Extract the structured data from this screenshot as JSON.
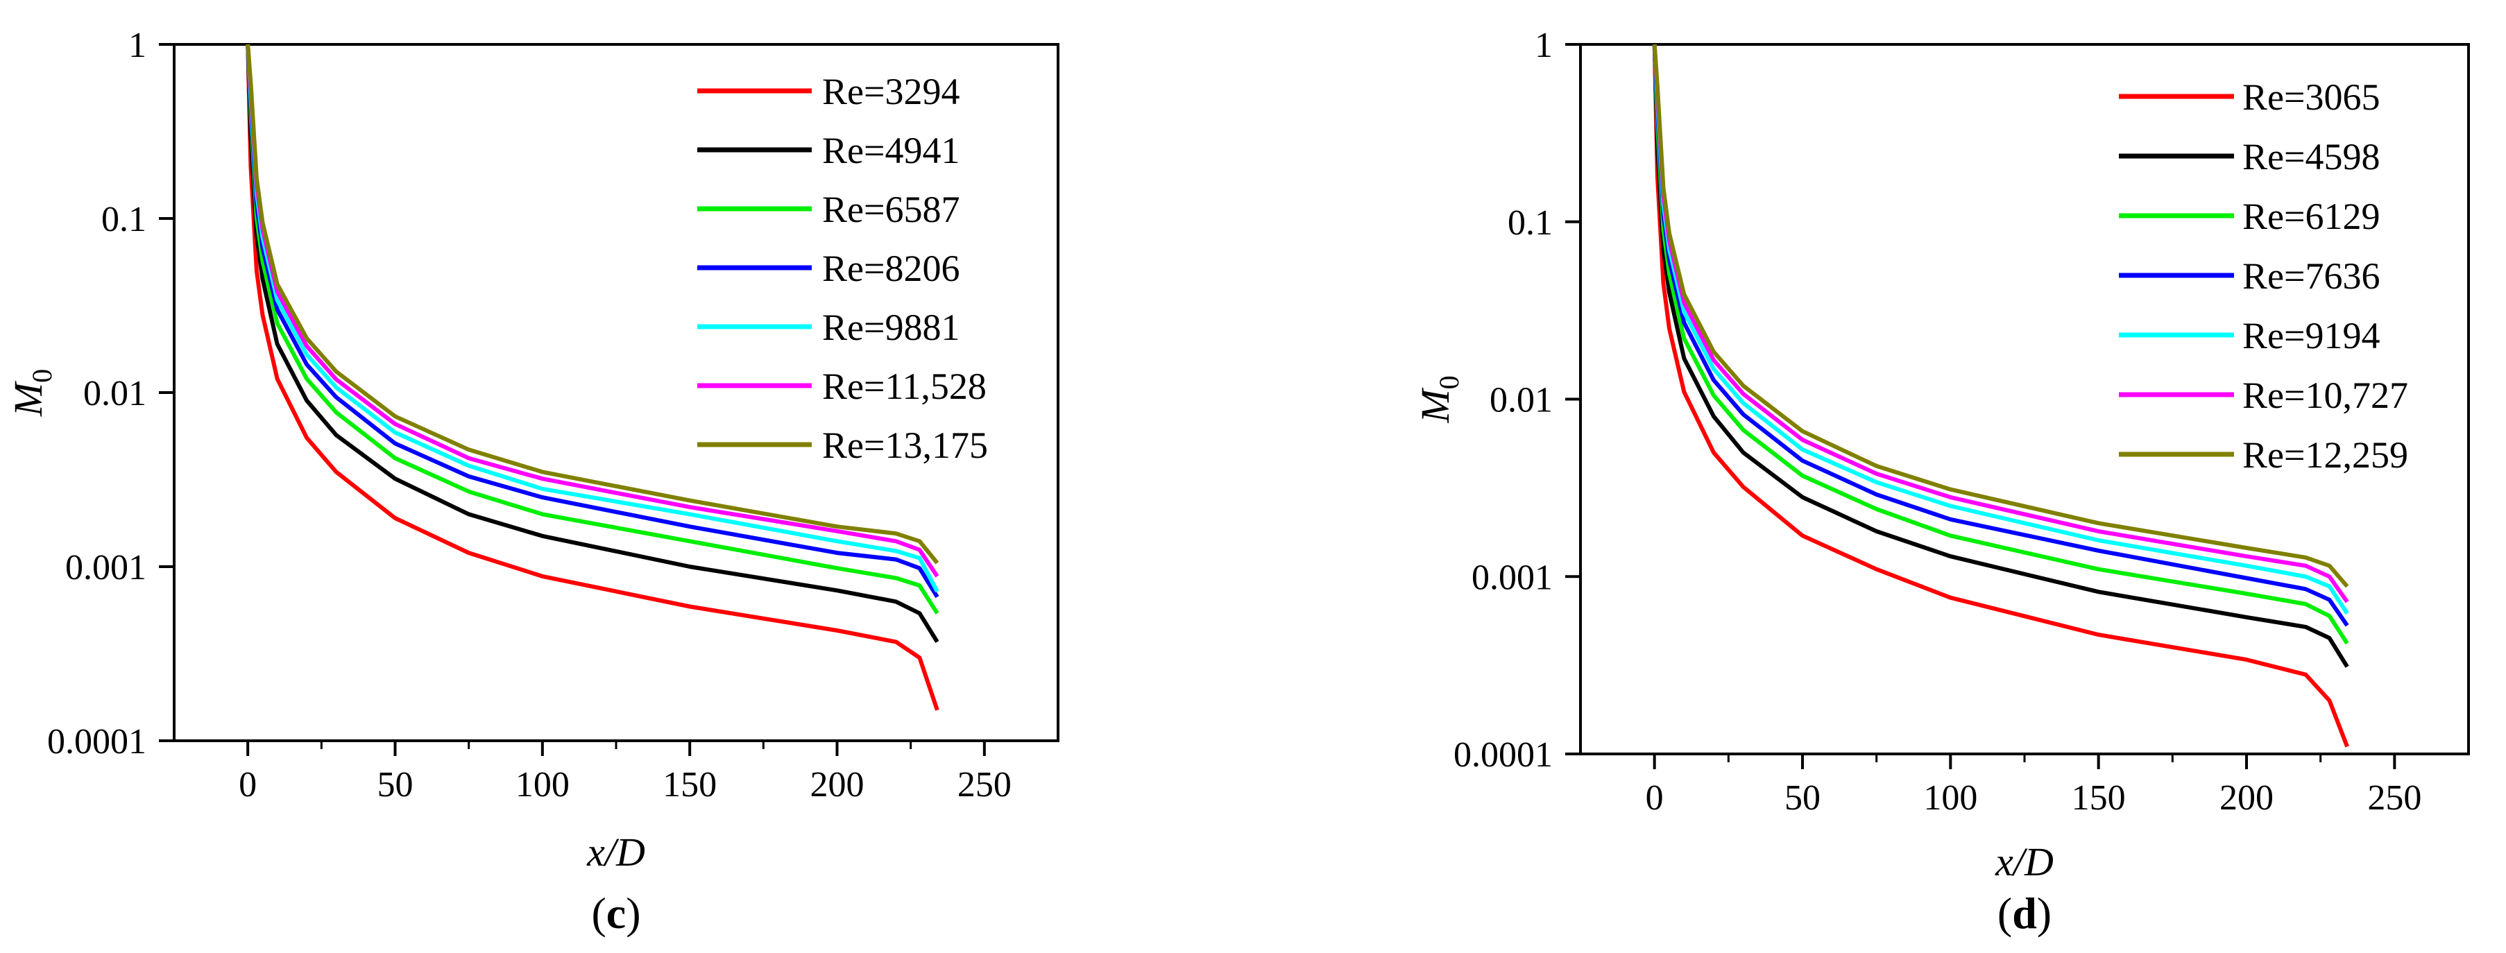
{
  "figure_title": "",
  "chart_data": [
    {
      "panel": "c",
      "panel_label": {
        "open": "(",
        "letter": "c",
        "close": ")"
      },
      "type": "line",
      "title": "",
      "xlabel": "x/D",
      "ylabel": {
        "main": "M",
        "sub": "0"
      },
      "xscale": "linear",
      "yscale": "log",
      "xlim": [
        -25,
        275
      ],
      "ylim": [
        0.0001,
        1
      ],
      "xticks": [
        0,
        50,
        100,
        150,
        200,
        250
      ],
      "xtick_labels": [
        "0",
        "50",
        "100",
        "150",
        "200",
        "250"
      ],
      "yticks": [
        1,
        0.1,
        0.01,
        0.001,
        0.0001
      ],
      "ytick_labels": [
        "1",
        "0.1",
        "0.01",
        "0.001",
        "0.0001"
      ],
      "legend_position": "top-right",
      "x": [
        0,
        1,
        3,
        5,
        10,
        20,
        30,
        50,
        75,
        100,
        150,
        200,
        220,
        228,
        234
      ],
      "series": [
        {
          "name": "Re=3294",
          "color": "#ff0000",
          "values": [
            1,
            0.2,
            0.05,
            0.028,
            0.012,
            0.0055,
            0.0035,
            0.0019,
            0.0012,
            0.00088,
            0.00059,
            0.00043,
            0.00037,
            0.0003,
            0.00015
          ]
        },
        {
          "name": "Re=4941",
          "color": "#000000",
          "values": [
            1,
            0.3,
            0.08,
            0.045,
            0.019,
            0.009,
            0.0057,
            0.0032,
            0.002,
            0.0015,
            0.001,
            0.00073,
            0.00063,
            0.00054,
            0.00037
          ]
        },
        {
          "name": "Re=6587",
          "color": "#00ee00",
          "values": [
            1,
            0.4,
            0.1,
            0.057,
            0.025,
            0.012,
            0.0077,
            0.0042,
            0.0027,
            0.002,
            0.0014,
            0.00098,
            0.00086,
            0.00078,
            0.00054
          ]
        },
        {
          "name": "Re=8206",
          "color": "#0000ff",
          "values": [
            1,
            0.45,
            0.12,
            0.068,
            0.03,
            0.0145,
            0.0094,
            0.0051,
            0.0033,
            0.0025,
            0.0017,
            0.0012,
            0.0011,
            0.00098,
            0.00067
          ]
        },
        {
          "name": "Re=9881",
          "color": "#00ffff",
          "values": [
            1,
            0.5,
            0.14,
            0.078,
            0.034,
            0.0165,
            0.0107,
            0.0059,
            0.0038,
            0.0028,
            0.002,
            0.0014,
            0.00123,
            0.00112,
            0.00072
          ]
        },
        {
          "name": "Re=11,528",
          "color": "#ff00ff",
          "values": [
            1,
            0.55,
            0.155,
            0.087,
            0.038,
            0.0185,
            0.0119,
            0.0066,
            0.0042,
            0.0032,
            0.0022,
            0.0016,
            0.0014,
            0.00125,
            0.00088
          ]
        },
        {
          "name": "Re=13,175",
          "color": "#808000",
          "values": [
            1,
            0.6,
            0.17,
            0.095,
            0.042,
            0.0205,
            0.0132,
            0.0073,
            0.0047,
            0.0035,
            0.0024,
            0.0017,
            0.00155,
            0.0014,
            0.00105
          ]
        }
      ]
    },
    {
      "panel": "d",
      "panel_label": {
        "open": "(",
        "letter": "d",
        "close": ")"
      },
      "type": "line",
      "title": "",
      "xlabel": "x/D",
      "ylabel": {
        "main": "M",
        "sub": "0"
      },
      "xscale": "linear",
      "yscale": "log",
      "xlim": [
        -25,
        275
      ],
      "ylim": [
        0.0001,
        1
      ],
      "xticks": [
        0,
        50,
        100,
        150,
        200,
        250
      ],
      "xtick_labels": [
        "0",
        "50",
        "100",
        "150",
        "200",
        "250"
      ],
      "yticks": [
        1,
        0.1,
        0.01,
        0.001,
        0.0001
      ],
      "ytick_labels": [
        "1",
        "0.1",
        "0.01",
        "0.001",
        "0.0001"
      ],
      "legend_position": "top-right",
      "x": [
        0,
        1,
        3,
        5,
        10,
        20,
        30,
        50,
        75,
        100,
        150,
        200,
        220,
        228,
        234
      ],
      "series": [
        {
          "name": "Re=3065",
          "color": "#ff0000",
          "values": [
            1,
            0.18,
            0.045,
            0.025,
            0.011,
            0.005,
            0.0032,
            0.0017,
            0.0011,
            0.00076,
            0.00047,
            0.00034,
            0.00028,
            0.0002,
            0.00011
          ]
        },
        {
          "name": "Re=4598",
          "color": "#000000",
          "values": [
            1,
            0.27,
            0.07,
            0.04,
            0.017,
            0.008,
            0.005,
            0.0028,
            0.0018,
            0.0013,
            0.00082,
            0.00059,
            0.00052,
            0.00045,
            0.00031
          ]
        },
        {
          "name": "Re=6129",
          "color": "#00ee00",
          "values": [
            1,
            0.35,
            0.09,
            0.051,
            0.022,
            0.0105,
            0.0067,
            0.0037,
            0.0024,
            0.0017,
            0.0011,
            0.0008,
            0.0007,
            0.0006,
            0.00042
          ]
        },
        {
          "name": "Re=7636",
          "color": "#0000ff",
          "values": [
            1,
            0.42,
            0.11,
            0.061,
            0.027,
            0.0128,
            0.0082,
            0.0045,
            0.0029,
            0.0021,
            0.0014,
            0.00098,
            0.00085,
            0.00074,
            0.00053
          ]
        },
        {
          "name": "Re=9194",
          "color": "#00ffff",
          "values": [
            1,
            0.48,
            0.125,
            0.07,
            0.031,
            0.0148,
            0.0095,
            0.0052,
            0.0034,
            0.0025,
            0.0016,
            0.00115,
            0.001,
            0.00088,
            0.00062
          ]
        },
        {
          "name": "Re=10,727",
          "color": "#ff00ff",
          "values": [
            1,
            0.53,
            0.14,
            0.078,
            0.035,
            0.0166,
            0.0107,
            0.0059,
            0.0038,
            0.0028,
            0.0018,
            0.0013,
            0.00115,
            0.001,
            0.00072
          ]
        },
        {
          "name": "Re=12,259",
          "color": "#808000",
          "values": [
            1,
            0.58,
            0.155,
            0.086,
            0.039,
            0.0185,
            0.0119,
            0.0066,
            0.0042,
            0.0031,
            0.002,
            0.00145,
            0.00128,
            0.00115,
            0.00088
          ]
        }
      ]
    }
  ]
}
